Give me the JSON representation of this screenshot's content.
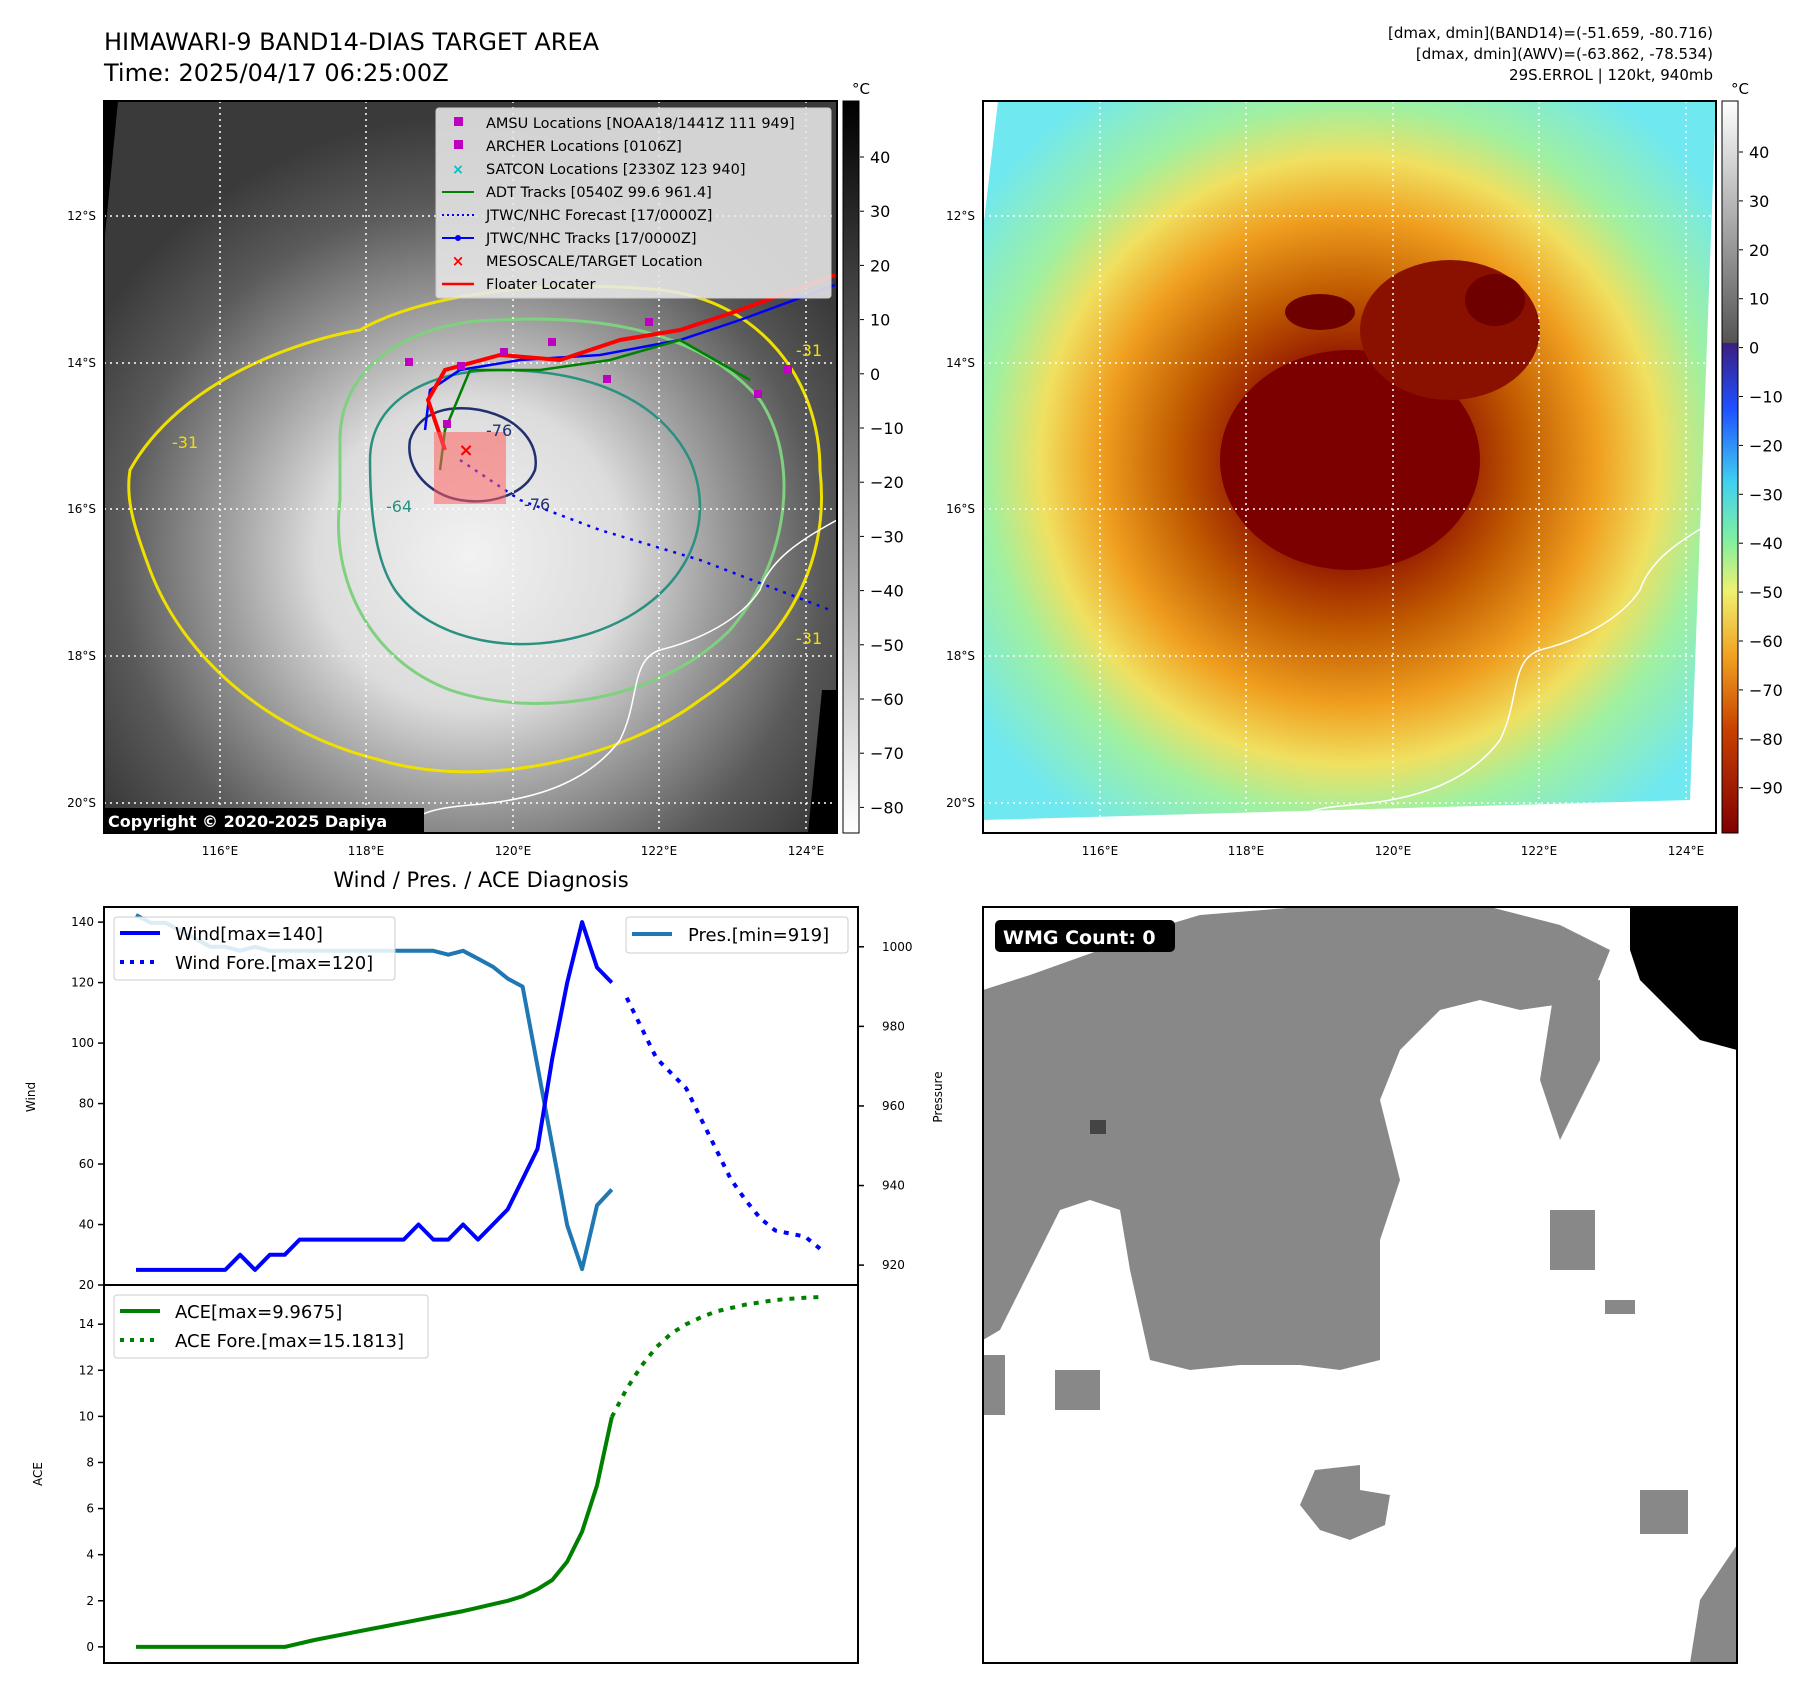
{
  "header": {
    "title_line1": "HIMAWARI-9 BAND14-DIAS TARGET AREA",
    "title_line2": "Time: 2025/04/17 06:25:00Z",
    "stats_line1": "[dmax, dmin](BAND14)=(-51.659, -80.716)",
    "stats_line2": "[dmax, dmin](AWV)=(-63.862, -78.534)",
    "stats_line3": "29S.ERROL | 120kt, 940mb"
  },
  "maps": {
    "lon_ticks": [
      "116°E",
      "118°E",
      "120°E",
      "122°E",
      "124°E"
    ],
    "lat_ticks": [
      "12°S",
      "14°S",
      "16°S",
      "18°S",
      "20°S"
    ],
    "colorbar_unit": "°C",
    "left_colorbar_ticks": [
      "40",
      "30",
      "20",
      "10",
      "0",
      "−10",
      "−20",
      "−30",
      "−40",
      "−50",
      "−60",
      "−70",
      "−80"
    ],
    "right_colorbar_ticks": [
      "40",
      "30",
      "20",
      "10",
      "0",
      "−10",
      "−20",
      "−30",
      "−40",
      "−50",
      "−60",
      "−70",
      "−80",
      "−90"
    ],
    "copyright": "Copyright © 2020-2025 Dapiya",
    "contour_labels": [
      "-31",
      "-64",
      "-76",
      "-76",
      "-31",
      "-31"
    ],
    "legend": [
      {
        "label": "AMSU Locations [NOAA18/1441Z 111 949]",
        "marker": "square",
        "color": "#c000c0"
      },
      {
        "label": "ARCHER Locations [0106Z]",
        "marker": "square",
        "color": "#c000c0"
      },
      {
        "label": "SATCON Locations [2330Z 123 940]",
        "marker": "x",
        "color": "#00c0c0"
      },
      {
        "label": "ADT Tracks [0540Z 99.6 961.4]",
        "marker": "line",
        "color": "#008000"
      },
      {
        "label": "JTWC/NHC Forecast [17/0000Z]",
        "marker": "dotted",
        "color": "#0000ff"
      },
      {
        "label": "JTWC/NHC Tracks [17/0000Z]",
        "marker": "line-dot",
        "color": "#0000ff"
      },
      {
        "label": "MESOSCALE/TARGET Location",
        "marker": "x",
        "color": "#ff0000"
      },
      {
        "label": "Floater Locater",
        "marker": "line",
        "color": "#ff0000"
      }
    ]
  },
  "wmg": {
    "label": "WMG Count: 0"
  },
  "chart_data": [
    {
      "type": "line",
      "title": "Wind / Pres. / ACE Diagnosis",
      "ylabel": "Wind",
      "y2label": "Pressure",
      "ylim": [
        20,
        145
      ],
      "y2lim": [
        915,
        1010
      ],
      "yticks": [
        20,
        40,
        60,
        80,
        100,
        120,
        140
      ],
      "y2ticks": [
        920,
        940,
        960,
        980,
        1000
      ],
      "series": [
        {
          "name": "Wind[max=140]",
          "color": "#0000ff",
          "style": "solid",
          "x": [
            0,
            1,
            2,
            3,
            4,
            5,
            6,
            7,
            8,
            9,
            10,
            11,
            12,
            13,
            14,
            15,
            16,
            17,
            18,
            19,
            20,
            21,
            22,
            23,
            24,
            25,
            26,
            27,
            28,
            29,
            30,
            31,
            32
          ],
          "y": [
            25,
            25,
            25,
            25,
            25,
            25,
            25,
            30,
            25,
            30,
            30,
            35,
            35,
            35,
            35,
            35,
            35,
            35,
            35,
            40,
            35,
            35,
            40,
            35,
            40,
            45,
            55,
            65,
            95,
            120,
            140,
            125,
            120
          ]
        },
        {
          "name": "Wind Fore.[max=120]",
          "color": "#0000ff",
          "style": "dotted",
          "x": [
            33,
            34,
            35,
            36,
            37,
            38,
            39,
            40,
            41,
            42,
            43,
            44,
            45,
            46
          ],
          "y": [
            115,
            105,
            95,
            90,
            85,
            75,
            65,
            55,
            48,
            42,
            38,
            37,
            36,
            32
          ]
        },
        {
          "name": "Pres.[min=919]",
          "color": "#1f77b4",
          "style": "solid",
          "axis": "y2",
          "x": [
            0,
            1,
            2,
            3,
            4,
            5,
            6,
            7,
            8,
            9,
            10,
            11,
            12,
            13,
            14,
            15,
            16,
            17,
            18,
            19,
            20,
            21,
            22,
            23,
            24,
            25,
            26,
            27,
            28,
            29,
            30,
            31,
            32
          ],
          "y": [
            1008,
            1006,
            1006,
            1004,
            1002,
            1000,
            1000,
            999,
            1000,
            999,
            999,
            999,
            999,
            999,
            999,
            999,
            999,
            999,
            999,
            999,
            999,
            998,
            999,
            997,
            995,
            992,
            990,
            970,
            950,
            930,
            919,
            935,
            939
          ]
        }
      ]
    },
    {
      "type": "line",
      "ylabel": "ACE",
      "ylim": [
        -0.7,
        15.7
      ],
      "yticks": [
        0,
        2,
        4,
        6,
        8,
        10,
        12,
        14
      ],
      "series": [
        {
          "name": "ACE[max=9.9675]",
          "color": "#008000",
          "style": "solid",
          "x": [
            0,
            6,
            10,
            12,
            14,
            16,
            18,
            20,
            22,
            23,
            24,
            25,
            26,
            27,
            28,
            29,
            30,
            31,
            32
          ],
          "y": [
            0,
            0,
            0,
            0.3,
            0.55,
            0.8,
            1.05,
            1.3,
            1.55,
            1.7,
            1.85,
            2.0,
            2.2,
            2.5,
            2.9,
            3.7,
            5.0,
            7.0,
            9.97
          ]
        },
        {
          "name": "ACE Fore.[max=15.1813]",
          "color": "#008000",
          "style": "dotted",
          "x": [
            32,
            33,
            34,
            35,
            36,
            37,
            38,
            39,
            40,
            41,
            42,
            43,
            44,
            45,
            46
          ],
          "y": [
            9.97,
            11.2,
            12.2,
            13.0,
            13.6,
            14.0,
            14.3,
            14.55,
            14.7,
            14.85,
            14.95,
            15.05,
            15.1,
            15.15,
            15.18
          ]
        }
      ]
    }
  ]
}
